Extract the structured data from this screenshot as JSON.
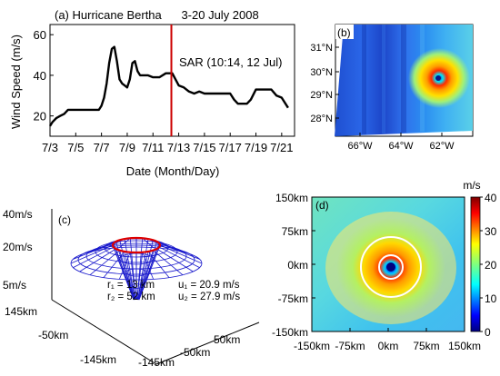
{
  "chart_data": [
    {
      "panel": "(a)",
      "type": "line",
      "title": "(a) Hurricane Bertha      3-20 July 2008",
      "xlabel": "Date (Month/Day)",
      "ylabel": "Wind Speed (m/s)",
      "xticks": [
        "7/3",
        "7/5",
        "7/7",
        "7/9",
        "7/11",
        "7/13",
        "7/15",
        "7/17",
        "7/19",
        "7/21"
      ],
      "yticks": [
        "20",
        "40",
        "60"
      ],
      "ylim": [
        10,
        65
      ],
      "xlim": [
        3,
        22
      ],
      "grid": false,
      "annotation": "SAR (10:14, 12 Jul)",
      "annotation_x": 12.43,
      "annotation_color": "#cc0000",
      "line_color": "#000000",
      "x": [
        3.0,
        3.2,
        3.5,
        3.8,
        4.1,
        4.4,
        4.7,
        5.0,
        5.5,
        6.0,
        6.5,
        6.8,
        7.0,
        7.2,
        7.4,
        7.6,
        7.8,
        8.0,
        8.2,
        8.4,
        8.6,
        8.8,
        9.0,
        9.2,
        9.4,
        9.6,
        9.8,
        10.0,
        10.3,
        10.6,
        11.0,
        11.5,
        12.0,
        12.5,
        13.0,
        13.4,
        13.8,
        14.2,
        14.6,
        15.0,
        15.5,
        16.0,
        16.5,
        17.0,
        17.3,
        17.6,
        18.0,
        18.3,
        18.6,
        19.0,
        19.4,
        19.8,
        20.2,
        20.6,
        21.0,
        21.5
      ],
      "y": [
        15,
        17,
        19,
        20,
        21,
        23,
        23,
        23,
        23,
        23,
        23,
        23,
        25,
        29,
        36,
        46,
        53,
        54,
        47,
        38,
        36,
        35,
        34,
        38,
        46,
        47,
        42,
        40,
        40,
        40,
        39,
        39,
        41,
        41,
        35,
        34,
        32,
        31,
        32,
        31,
        31,
        31,
        31,
        31,
        28,
        26,
        26,
        26,
        28,
        33,
        33,
        33,
        33,
        30,
        29,
        24
      ]
    },
    {
      "panel": "(b)",
      "type": "heatmap",
      "title": "(b)",
      "xticks": [
        "66°W",
        "64°W",
        "62°W"
      ],
      "yticks": [
        "31°N",
        "30°N",
        "29°N",
        "28°N"
      ]
    },
    {
      "panel": "(c)",
      "type": "surface",
      "title": "(c)",
      "zticks": [
        "40m/s",
        "20m/s",
        "5m/s"
      ],
      "xticks": [
        "145km",
        "-50km",
        "-145km"
      ],
      "yticks": [
        "50km",
        "-50km",
        "-145km"
      ],
      "annotation_lines": [
        "r₁ = 13 km",
        "r₂ = 52 km",
        "u₁ = 20.9 m/s",
        "u₂ = 27.9 m/s"
      ],
      "mesh_color": "#0000cc",
      "ring_color": "#dd0000"
    },
    {
      "panel": "(d)",
      "type": "heatmap",
      "title": "(d)",
      "xticks": [
        "-150km",
        "-75km",
        "0km",
        "75km",
        "150km"
      ],
      "yticks": [
        "150km",
        "75km",
        "0km",
        "-75km",
        "-150km"
      ],
      "colorbar_label": "m/s",
      "colorbar_ticks": [
        "40",
        "30",
        "20",
        "10",
        "0"
      ],
      "colorbar_range": [
        0,
        40
      ]
    }
  ]
}
